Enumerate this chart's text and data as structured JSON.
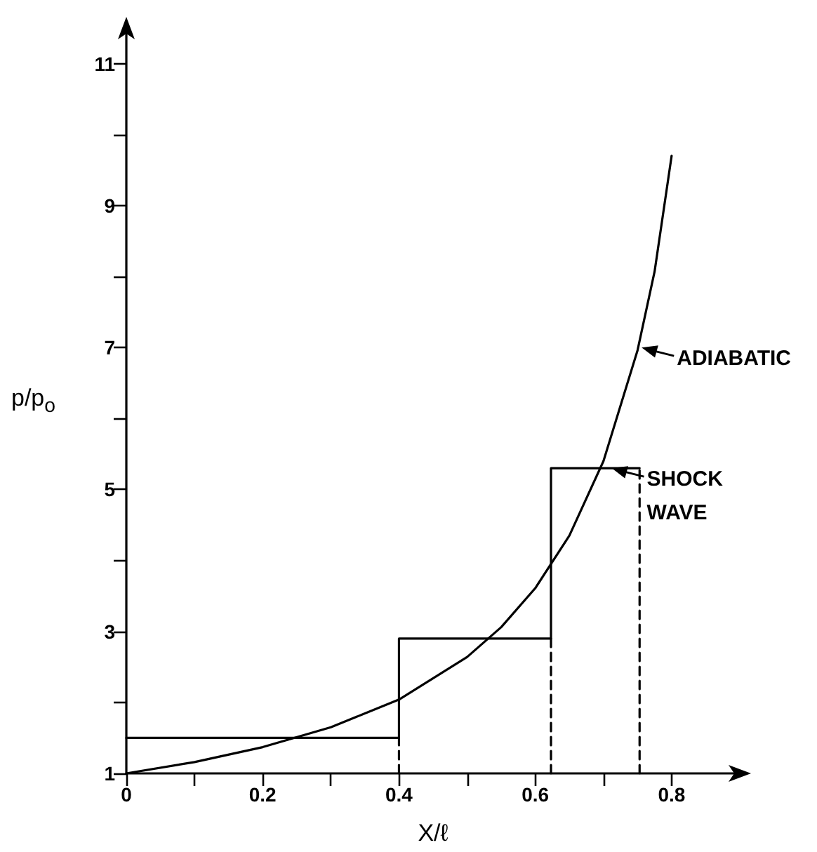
{
  "chart_data": {
    "type": "line",
    "xlabel": "X/ℓ",
    "ylabel": "p/p$_{o}$",
    "series": [
      {
        "name": null,
        "color": "#000000",
        "x": [
          0,
          0.1,
          0.2,
          0.3,
          0.4,
          0.5,
          0.55,
          0.6,
          0.65,
          0.7,
          0.75,
          0.775,
          0.8
        ],
        "values": [
          1,
          1.16,
          1.37,
          1.65,
          2.04,
          2.64,
          3.06,
          3.61,
          4.35,
          5.4,
          6.96,
          8.07,
          9.7
        ]
      },
      {
        "name": null,
        "type": "step",
        "color": "#000000",
        "x": [
          0,
          0.4,
          0.623,
          0.753
        ],
        "values": [
          1.5,
          2.9,
          5.3,
          5.3
        ]
      },
      {
        "name": null,
        "color": "#000000",
        "line_style": "dashed",
        "x": [
          0.4,
          0.4
        ],
        "values": [
          1,
          1.5
        ]
      },
      {
        "name": null,
        "color": "#000000",
        "line_style": "dashed",
        "x": [
          0.623,
          0.623
        ],
        "values": [
          1,
          2.9
        ]
      },
      {
        "name": null,
        "color": "#000000",
        "line_style": "dashed",
        "x": [
          0.753,
          0.753
        ],
        "values": [
          1,
          5.3
        ]
      }
    ],
    "xlim": [
      0,
      0.9
    ],
    "xticks": [
      0,
      {
        "value": 0.1,
        "label": null
      },
      0.2,
      {
        "value": 0.3,
        "label": null
      },
      0.4,
      {
        "value": 0.5,
        "label": null
      },
      0.6,
      {
        "value": 0.7,
        "label": null
      },
      0.8
    ],
    "ylim": [
      1,
      11.5
    ],
    "yticks": [
      1,
      {
        "value": 2,
        "label": null
      },
      3,
      {
        "value": 4,
        "label": null
      },
      5,
      {
        "value": 6,
        "label": null
      },
      7,
      {
        "value": 8,
        "label": null
      },
      9,
      {
        "value": 10,
        "label": null
      },
      11
    ],
    "annotations": [
      {
        "text": "ADIABATIC",
        "x": 0.754,
        "y": 7.0
      },
      {
        "text": "SHOCK WAVE",
        "x": 0.71,
        "y": 5.3
      }
    ],
    "marker": "none",
    "line_style": "solid",
    "grid": false
  }
}
